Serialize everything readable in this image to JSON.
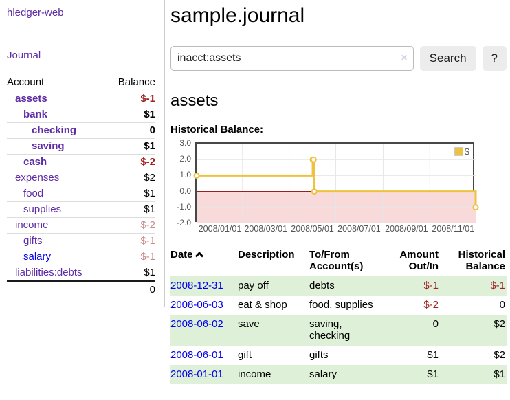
{
  "brand": "hledger-web",
  "nav": {
    "journal": "Journal"
  },
  "sidebar": {
    "header_account": "Account",
    "header_balance": "Balance",
    "accounts": [
      {
        "name": "assets",
        "balance": "$-1",
        "depth": 1,
        "emph": true
      },
      {
        "name": "bank",
        "balance": "$1",
        "depth": 2,
        "emph": true
      },
      {
        "name": "checking",
        "balance": "0",
        "depth": 3,
        "emph": true
      },
      {
        "name": "saving",
        "balance": "$1",
        "depth": 3,
        "emph": true
      },
      {
        "name": "cash",
        "balance": "$-2",
        "depth": 2,
        "emph": true
      },
      {
        "name": "expenses",
        "balance": "$2",
        "depth": 1
      },
      {
        "name": "food",
        "balance": "$1",
        "depth": 2
      },
      {
        "name": "supplies",
        "balance": "$1",
        "depth": 2
      },
      {
        "name": "income",
        "balance": "$-2",
        "depth": 1,
        "muted": true
      },
      {
        "name": "gifts",
        "balance": "$-1",
        "depth": 2,
        "muted": true
      },
      {
        "name": "salary",
        "balance": "$-1",
        "depth": 2,
        "muted": true,
        "unvisited": true
      },
      {
        "name": "liabilities:debts",
        "balance": "$1",
        "depth": 1
      }
    ],
    "total": "0"
  },
  "main": {
    "title": "sample.journal",
    "search": {
      "value": "inacct:assets",
      "clear": "×",
      "button": "Search",
      "help": "?"
    },
    "heading": "assets",
    "chart_title": "Historical Balance:"
  },
  "chart_data": {
    "type": "line",
    "step": true,
    "title": "Historical Balance:",
    "series": [
      {
        "name": "$",
        "color": "#edc240",
        "points": [
          [
            "2008-01-01",
            1
          ],
          [
            "2008-06-01",
            2
          ],
          [
            "2008-06-02",
            2
          ],
          [
            "2008-06-03",
            0
          ],
          [
            "2008-12-31",
            -1
          ]
        ]
      }
    ],
    "xlim": [
      "2008-01-01",
      "2008-12-31"
    ],
    "ylim": [
      -2,
      3
    ],
    "x_ticks": [
      {
        "date": "2008-01-01",
        "label": "2008/01/01"
      },
      {
        "date": "2008-03-01",
        "label": "2008/03/01"
      },
      {
        "date": "2008-05-01",
        "label": "2008/05/01"
      },
      {
        "date": "2008-07-01",
        "label": "2008/07/01"
      },
      {
        "date": "2008-09-01",
        "label": "2008/09/01"
      },
      {
        "date": "2008-11-01",
        "label": "2008/11/01"
      }
    ],
    "y_ticks": [
      {
        "value": 3,
        "label": "3.0"
      },
      {
        "value": 2,
        "label": "2.0"
      },
      {
        "value": 1,
        "label": "1.0"
      },
      {
        "value": 0,
        "label": "0.0"
      },
      {
        "value": -1,
        "label": "-1.0"
      },
      {
        "value": -2,
        "label": "-2.0"
      }
    ],
    "grid_color": "#e6e6e6",
    "negative_fill": "#f9dada",
    "zero_line": "#8b0000",
    "legend": {
      "label": "$",
      "position": "top-right"
    }
  },
  "register": {
    "headers": {
      "date": "Date",
      "description": "Description",
      "accounts": "To/From Account(s)",
      "amount": "Amount Out/In",
      "balance": "Historical Balance"
    },
    "sort": "ascending",
    "rows": [
      {
        "date": "2008-12-31",
        "description": "pay off",
        "accounts": "debts",
        "amount": "$-1",
        "balance": "$-1"
      },
      {
        "date": "2008-06-03",
        "description": "eat & shop",
        "accounts": "food, supplies",
        "amount": "$-2",
        "balance": "0"
      },
      {
        "date": "2008-06-02",
        "description": "save",
        "accounts": "saving, checking",
        "amount": "0",
        "balance": "$2"
      },
      {
        "date": "2008-06-01",
        "description": "gift",
        "accounts": "gifts",
        "amount": "$1",
        "balance": "$2"
      },
      {
        "date": "2008-01-01",
        "description": "income",
        "accounts": "salary",
        "amount": "$1",
        "balance": "$1"
      }
    ]
  }
}
